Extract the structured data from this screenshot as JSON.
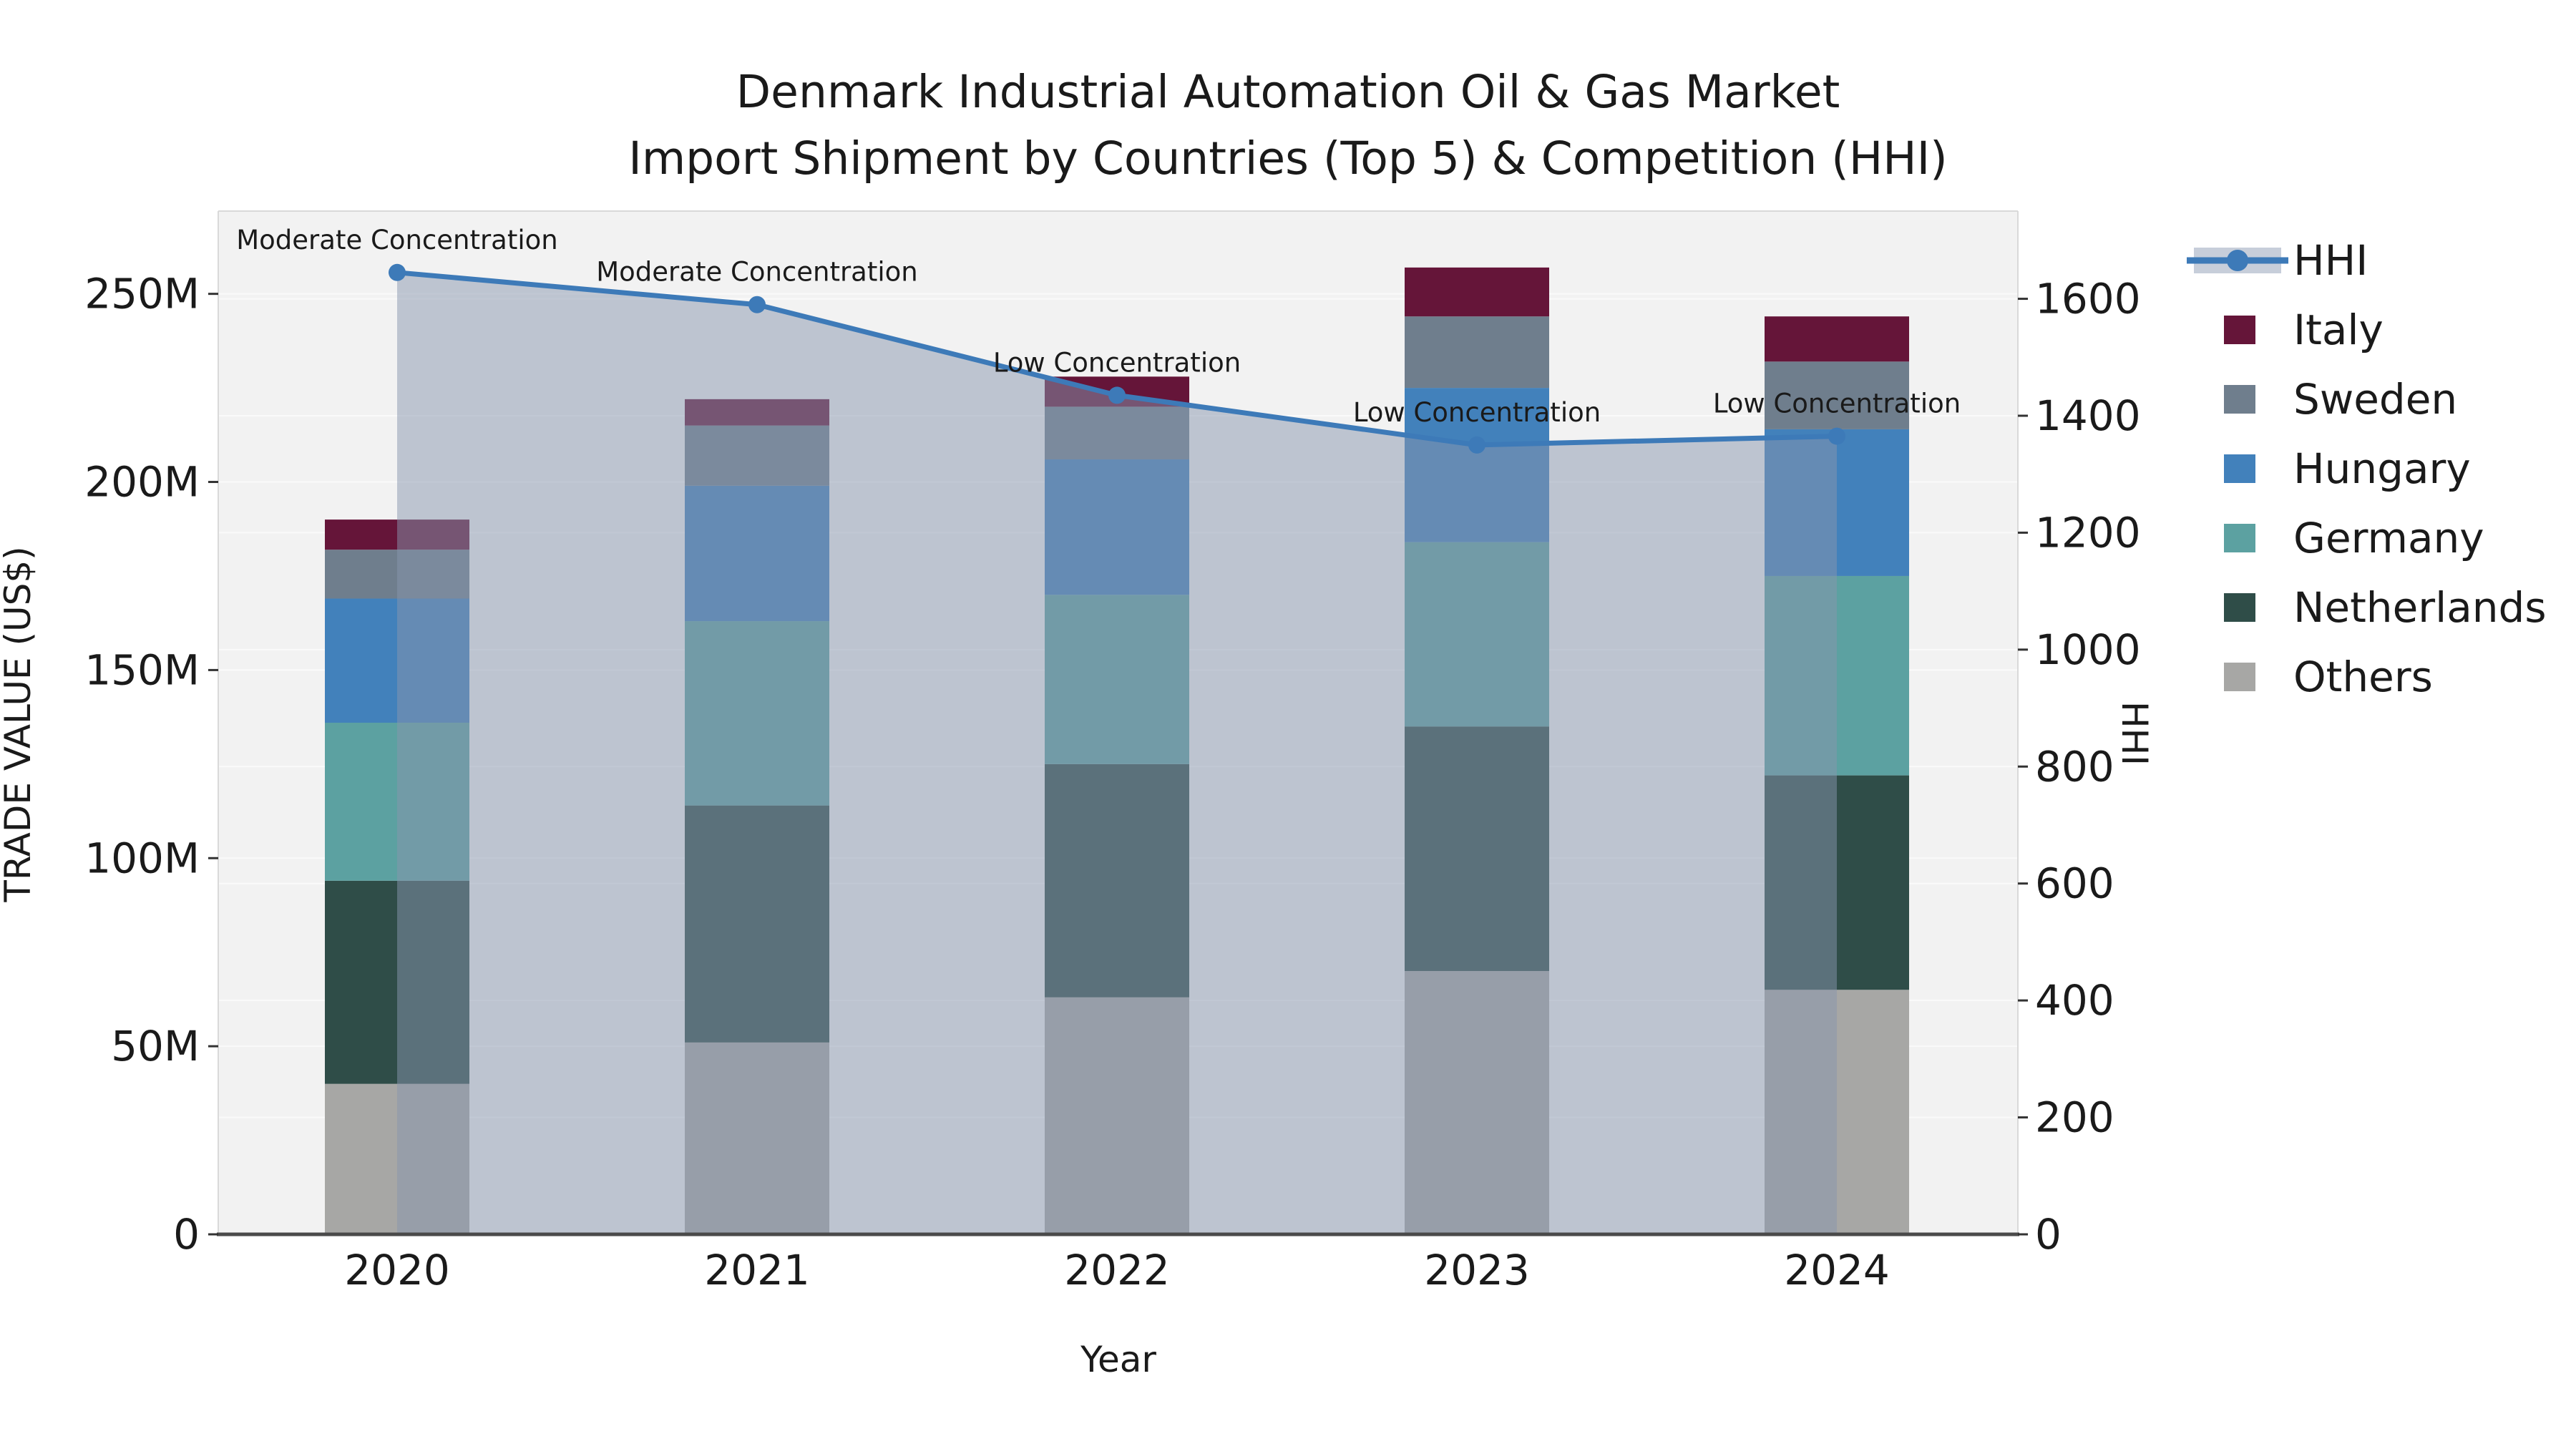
{
  "title": {
    "line1": "Denmark Industrial Automation Oil & Gas Market",
    "line2": "Import Shipment by Countries (Top 5) & Competition (HHI)"
  },
  "chart_data": {
    "type": "stacked-bar+line",
    "title": "Denmark Industrial Automation Oil & Gas Market Import Shipment by Countries (Top 5) & Competition (HHI)",
    "xlabel": "Year",
    "ylabel": "TRADE VALUE (US$)",
    "y2label": "HHI",
    "categories": [
      "2020",
      "2021",
      "2022",
      "2023",
      "2024"
    ],
    "value_unit": "million US$",
    "series": [
      {
        "name": "Others",
        "color": "#a7a7a5",
        "values": [
          40,
          51,
          63,
          70,
          65
        ]
      },
      {
        "name": "Netherlands",
        "color": "#2f4d48",
        "values": [
          54,
          63,
          62,
          65,
          57
        ]
      },
      {
        "name": "Germany",
        "color": "#5ca1a1",
        "values": [
          42,
          49,
          45,
          49,
          53
        ]
      },
      {
        "name": "Hungary",
        "color": "#4281bb",
        "values": [
          33,
          36,
          36,
          41,
          39
        ]
      },
      {
        "name": "Sweden",
        "color": "#6f7e8d",
        "values": [
          13,
          16,
          14,
          19,
          18
        ]
      },
      {
        "name": "Italy",
        "color": "#651539",
        "values": [
          8,
          7,
          8,
          13,
          12
        ]
      }
    ],
    "line_series": {
      "name": "HHI",
      "color": "#3d7ab8",
      "area_fill": "rgba(136,150,174,0.5)",
      "values": [
        1645,
        1590,
        1435,
        1350,
        1365
      ]
    },
    "annotations": [
      "Moderate Concentration",
      "Moderate Concentration",
      "Low Concentration",
      "Low Concentration",
      "Low Concentration"
    ],
    "ylim": [
      0,
      272
    ],
    "y2lim": [
      0,
      1750
    ],
    "yticks": {
      "values": [
        0,
        50,
        100,
        150,
        200,
        250
      ],
      "labels": [
        "0",
        "50M",
        "100M",
        "150M",
        "200M",
        "250M"
      ]
    },
    "y2ticks": {
      "values": [
        0,
        200,
        400,
        600,
        800,
        1000,
        1200,
        1400,
        1600
      ],
      "labels": [
        "0",
        "200",
        "400",
        "600",
        "800",
        "1000",
        "1200",
        "1400",
        "1600"
      ]
    },
    "grid": true,
    "legend_position": "right",
    "plot_background": "#f2f2f2"
  },
  "legend": {
    "items": [
      {
        "label": "HHI",
        "type": "line",
        "color": "#3d7ab8"
      },
      {
        "label": "Italy",
        "type": "swatch",
        "color": "#651539"
      },
      {
        "label": "Sweden",
        "type": "swatch",
        "color": "#6f7e8d"
      },
      {
        "label": "Hungary",
        "type": "swatch",
        "color": "#4281bb"
      },
      {
        "label": "Germany",
        "type": "swatch",
        "color": "#5ca1a1"
      },
      {
        "label": "Netherlands",
        "type": "swatch",
        "color": "#2f4d48"
      },
      {
        "label": "Others",
        "type": "swatch",
        "color": "#a7a7a5"
      }
    ]
  }
}
